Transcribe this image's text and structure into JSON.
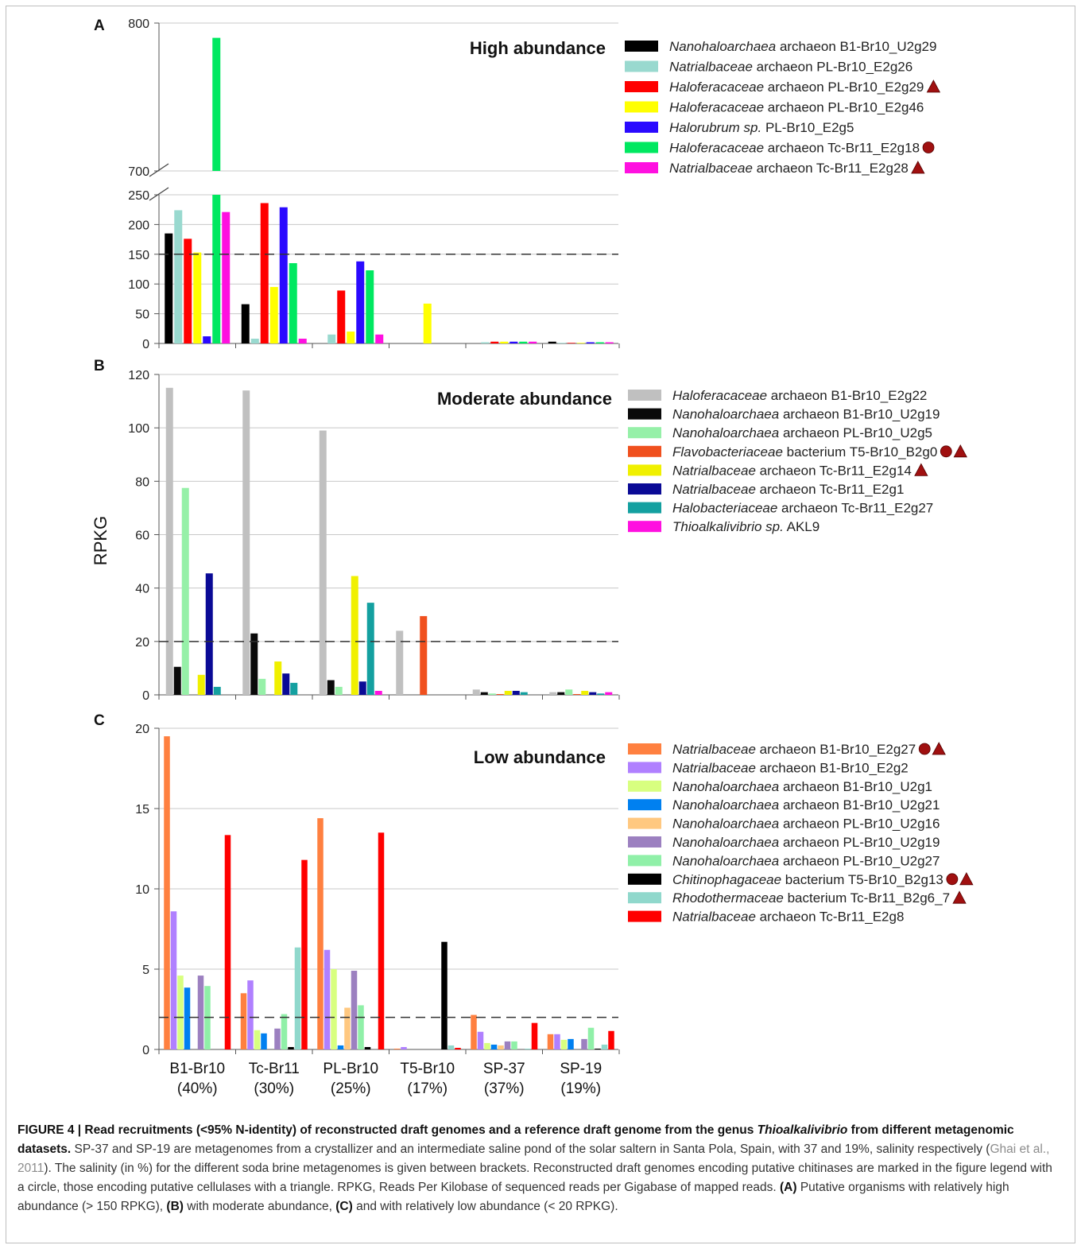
{
  "yaxis_label": "RPKG",
  "categories": [
    {
      "name": "B1-Br10",
      "pct": "(40%)"
    },
    {
      "name": "Tc-Br11",
      "pct": "(30%)"
    },
    {
      "name": "PL-Br10",
      "pct": "(25%)"
    },
    {
      "name": "T5-Br10",
      "pct": "(17%)"
    },
    {
      "name": "SP-37",
      "pct": "(37%)"
    },
    {
      "name": "SP-19",
      "pct": "(19%)"
    }
  ],
  "chart_data": [
    {
      "type": "bar",
      "panel": "A",
      "title": "High abundance",
      "ylabel": "RPKG",
      "categories": [
        "B1-Br10 (40%)",
        "Tc-Br11 (30%)",
        "PL-Br10 (25%)",
        "T5-Br10 (17%)",
        "SP-37 (37%)",
        "SP-19 (19%)"
      ],
      "axis_break": {
        "lower": [
          0,
          250
        ],
        "upper": [
          700,
          800
        ]
      },
      "yticks": [
        "0",
        "50",
        "100",
        "150",
        "200",
        "250",
        "700",
        "800"
      ],
      "threshold": 150,
      "series": [
        {
          "italic": "Nanohaloarchaea",
          "rest": " archaeon B1-Br10_U2g29",
          "marker": "",
          "color": "#000000",
          "values": [
            185,
            66,
            0,
            0,
            0,
            3
          ]
        },
        {
          "italic": "Natrialbaceae",
          "rest": " archaeon PL-Br10_E2g26",
          "marker": "",
          "color": "#99d9cf",
          "values": [
            224,
            8,
            15,
            0,
            2,
            1
          ]
        },
        {
          "italic": "Haloferacaceae",
          "rest": " archaeon PL-Br10_E2g29",
          "marker": "triangle",
          "color": "#ff0000",
          "values": [
            176,
            236,
            89,
            0,
            3,
            1
          ]
        },
        {
          "italic": "Haloferacaceae",
          "rest": " archaeon PL-Br10_E2g46",
          "marker": "",
          "color": "#ffff00",
          "values": [
            153,
            95,
            20,
            67,
            3,
            1
          ]
        },
        {
          "italic": "Halorubrum sp.",
          "rest": " PL-Br10_E2g5",
          "marker": "",
          "color": "#2a0aff",
          "values": [
            12,
            229,
            138,
            0,
            3,
            2
          ]
        },
        {
          "italic": "Haloferacaceae",
          "rest": " archaeon Tc-Br11_E2g18",
          "marker": "circle",
          "color": "#00e860",
          "values": [
            790,
            135,
            123,
            0,
            3,
            2
          ]
        },
        {
          "italic": "Natrialbaceae",
          "rest": " archaeon Tc-Br11_E2g28",
          "marker": "triangle",
          "color": "#ff10e0",
          "values": [
            221,
            8,
            15,
            0,
            3,
            2
          ]
        }
      ]
    },
    {
      "type": "bar",
      "panel": "B",
      "title": "Moderate abundance",
      "ylabel": "RPKG",
      "categories": [
        "B1-Br10 (40%)",
        "Tc-Br11 (30%)",
        "PL-Br10 (25%)",
        "T5-Br10 (17%)",
        "SP-37 (37%)",
        "SP-19 (19%)"
      ],
      "ylim": [
        0,
        120
      ],
      "yticks": [
        "0",
        "20",
        "40",
        "60",
        "80",
        "100",
        "120"
      ],
      "threshold": 20,
      "series": [
        {
          "italic": "Haloferacaceae",
          "rest": " archaeon B1-Br10_E2g22",
          "marker": "",
          "color": "#c0c0c0",
          "values": [
            115,
            114,
            99,
            24,
            2,
            1
          ]
        },
        {
          "italic": "Nanohaloarchaea",
          "rest": " archaeon B1-Br10_U2g19",
          "marker": "",
          "color": "#0a0a0a",
          "values": [
            10.5,
            23,
            5.5,
            0,
            1,
            1
          ]
        },
        {
          "italic": "Nanohaloarchaea",
          "rest": " archaeon PL-Br10_U2g5",
          "marker": "",
          "color": "#96f0a8",
          "values": [
            77.5,
            6,
            3,
            0,
            0.5,
            2
          ]
        },
        {
          "italic": "Flavobacteriaceae",
          "rest": " bacterium T5-Br10_B2g0",
          "marker": "circle+triangle",
          "color": "#f0501e",
          "values": [
            0,
            0,
            0,
            29.5,
            0.3,
            0.3
          ]
        },
        {
          "italic": "Natrialbaceae",
          "rest": " archaeon Tc-Br11_E2g14",
          "marker": "triangle",
          "color": "#f0f000",
          "values": [
            7.5,
            12.5,
            44.5,
            0,
            1.5,
            1.5
          ]
        },
        {
          "italic": "Natrialbaceae",
          "rest": " archaeon Tc-Br11_E2g1",
          "marker": "",
          "color": "#0a0a96",
          "values": [
            45.5,
            8,
            5,
            0,
            1.5,
            1
          ]
        },
        {
          "italic": "Halobacteriaceae",
          "rest": " archaeon Tc-Br11_E2g27",
          "marker": "",
          "color": "#14a0a0",
          "values": [
            3,
            4.5,
            34.5,
            0,
            1,
            0.5
          ]
        },
        {
          "italic": "Thioalkalivibrio sp.",
          "rest": " AKL9",
          "marker": "",
          "color": "#ff10e0",
          "values": [
            0,
            0,
            1.5,
            0,
            0,
            1
          ]
        }
      ]
    },
    {
      "type": "bar",
      "panel": "C",
      "title": "Low abundance",
      "ylabel": "RPKG",
      "categories": [
        "B1-Br10 (40%)",
        "Tc-Br11 (30%)",
        "PL-Br10 (25%)",
        "T5-Br10 (17%)",
        "SP-37 (37%)",
        "SP-19 (19%)"
      ],
      "ylim": [
        0,
        20
      ],
      "yticks": [
        "0",
        "5",
        "10",
        "15",
        "20"
      ],
      "threshold": 2,
      "series": [
        {
          "italic": "Natrialbaceae",
          "rest": " archaeon B1-Br10_E2g27",
          "marker": "circle+triangle",
          "color": "#ff8040",
          "values": [
            19.5,
            3.5,
            14.4,
            0.05,
            2.15,
            0.95
          ]
        },
        {
          "italic": "Natrialbaceae",
          "rest": " archaeon B1-Br10_E2g2",
          "marker": "",
          "color": "#b080ff",
          "values": [
            8.6,
            4.3,
            6.2,
            0.15,
            1.1,
            0.95
          ]
        },
        {
          "italic": "Nanohaloarchaea",
          "rest": " archaeon B1-Br10_U2g1",
          "marker": "",
          "color": "#d8ff80",
          "values": [
            4.6,
            1.2,
            5.0,
            0,
            0.4,
            0.6
          ]
        },
        {
          "italic": "Nanohaloarchaea",
          "rest": " archaeon B1-Br10_U2g21",
          "marker": "",
          "color": "#0080f0",
          "values": [
            3.85,
            1.0,
            0.25,
            0,
            0.3,
            0.65
          ]
        },
        {
          "italic": "Nanohaloarchaea",
          "rest": " archaeon PL-Br10_U2g16",
          "marker": "",
          "color": "#ffc880",
          "values": [
            0,
            0,
            2.6,
            0,
            0.25,
            0
          ]
        },
        {
          "italic": "Nanohaloarchaea",
          "rest": " archaeon PL-Br10_U2g19",
          "marker": "",
          "color": "#9c80c0",
          "values": [
            4.6,
            1.3,
            4.9,
            0,
            0.5,
            0.65
          ]
        },
        {
          "italic": "Nanohaloarchaea",
          "rest": " archaeon PL-Br10_U2g27",
          "marker": "",
          "color": "#90f0a8",
          "values": [
            3.95,
            2.2,
            2.75,
            0,
            0.5,
            1.35
          ]
        },
        {
          "italic": "Chitinophagaceae",
          "rest": " bacterium T5-Br10_B2g13",
          "marker": "circle+triangle",
          "color": "#000000",
          "values": [
            0,
            0.15,
            0.15,
            6.7,
            0,
            0.05
          ]
        },
        {
          "italic": "Rhodothermaceae",
          "rest": " bacterium Tc-Br11_B2g6_7",
          "marker": "triangle",
          "color": "#90d8cc",
          "values": [
            0,
            6.35,
            0,
            0.25,
            0.05,
            0.3
          ]
        },
        {
          "italic": "Natrialbaceae",
          "rest": " archaeon Tc-Br11_E2g8",
          "marker": "",
          "color": "#ff0000",
          "values": [
            13.35,
            11.8,
            13.5,
            0.1,
            1.65,
            1.15
          ]
        }
      ]
    }
  ],
  "caption": {
    "fig": "FIGURE 4 | Read recruitments (<95% N-identity) of reconstructed draft genomes and a reference draft genome from the genus ",
    "fig_genus": "Thioalkalivibrio",
    "fig_end": " from different metagenomic datasets.",
    "t1": " SP-37 and SP-19 are metagenomes from a crystallizer and an intermediate saline pond of the solar saltern in Santa Pola, Spain, with 37 and 19%, salinity respectively (",
    "cite": "Ghai et al., 2011",
    "t2": "). The salinity (in %) for the different soda brine metagenomes is given between brackets. Reconstructed draft genomes encoding putative chitinases are marked in the figure legend with a circle, those encoding putative cellulases with a triangle. RPKG, Reads Per Kilobase of sequenced reads per Gigabase of mapped reads. ",
    "a": "(A)",
    "t3": " Putative organisms with relatively high abundance (> 150 RPKG), ",
    "b": "(B)",
    "t4": " with moderate abundance, ",
    "c": "(C)",
    "t5": " and with relatively low abundance (< 20 RPKG)."
  }
}
